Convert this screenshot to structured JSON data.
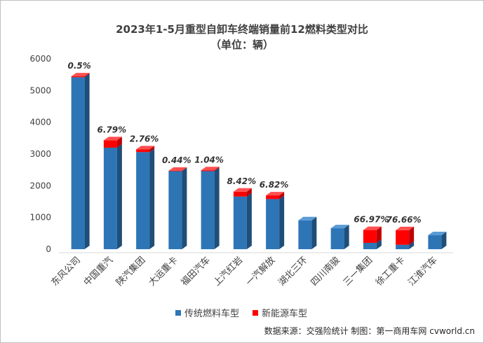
{
  "chart_data": {
    "type": "bar",
    "title": "2023年1-5月重型自卸车终端销量前12燃料类型对比",
    "subtitle": "（单位：辆）",
    "ylim": [
      0,
      6000
    ],
    "yticks": [
      "0",
      "1000",
      "2000",
      "3000",
      "4000",
      "5000",
      "6000"
    ],
    "grid": false,
    "legend_position": "bottom",
    "stacked": true,
    "categories": [
      "东风公司",
      "中国重汽",
      "陕汽集团",
      "大运重卡",
      "福田汽车",
      "上汽红岩",
      "一汽解放",
      "湖北三环",
      "四川南骏",
      "三一集团",
      "徐工重卡",
      "江淮汽车"
    ],
    "series": [
      {
        "name": "传统燃料车型",
        "color": "#2e75b6",
        "side": "#1f4e79",
        "top": "#5b9bd5",
        "values": [
          5420,
          3200,
          3060,
          2460,
          2460,
          1660,
          1580,
          910,
          660,
          200,
          140,
          440
        ]
      },
      {
        "name": "新能源车型",
        "color": "#ff0000",
        "side": "#c00000",
        "top": "#ff5050",
        "values": [
          27,
          233,
          87,
          11,
          26,
          153,
          116,
          0,
          0,
          405,
          459,
          0
        ]
      }
    ],
    "annotations": [
      "0.5%",
      "6.79%",
      "2.76%",
      "0.44%",
      "1.04%",
      "8.42%",
      "6.82%",
      "",
      "",
      "66.97%",
      "76.66%",
      ""
    ],
    "source_note": "数据来源：交强险统计  制图：第一商用车网 cvworld.cn"
  }
}
